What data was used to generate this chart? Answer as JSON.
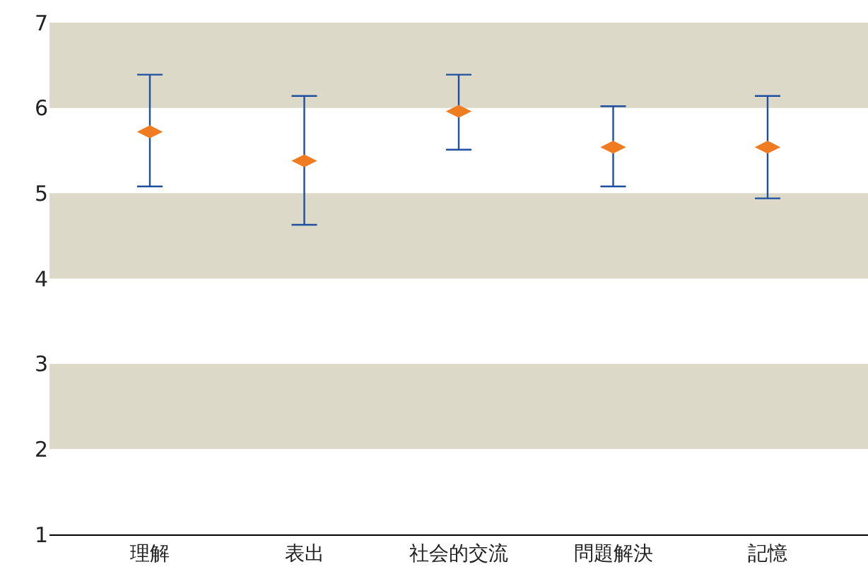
{
  "chart_data": {
    "type": "scatter",
    "categories": [
      "理解",
      "表出",
      "社会的交流",
      "問題解決",
      "記憶"
    ],
    "series": [
      {
        "color": "#f07c22",
        "values": [
          5.72,
          5.38,
          5.96,
          5.54,
          5.54
        ],
        "errors": [
          [
            5.08,
            6.39
          ],
          [
            4.63,
            6.14
          ],
          [
            5.51,
            6.39
          ],
          [
            5.08,
            6.02
          ],
          [
            4.94,
            6.14
          ]
        ]
      }
    ],
    "ylim": [
      1,
      7
    ],
    "yticks": [
      1,
      2,
      3,
      4,
      5,
      6,
      7
    ],
    "bands": [
      {
        "axis": "y",
        "from": 2,
        "to": 3,
        "color": "#dcd9c9"
      },
      {
        "axis": "y",
        "from": 4,
        "to": 5,
        "color": "#dcd9c9"
      },
      {
        "axis": "y",
        "from": 6,
        "to": 7,
        "color": "#dcd9c9"
      }
    ],
    "grid": false,
    "marker": "diamond"
  }
}
